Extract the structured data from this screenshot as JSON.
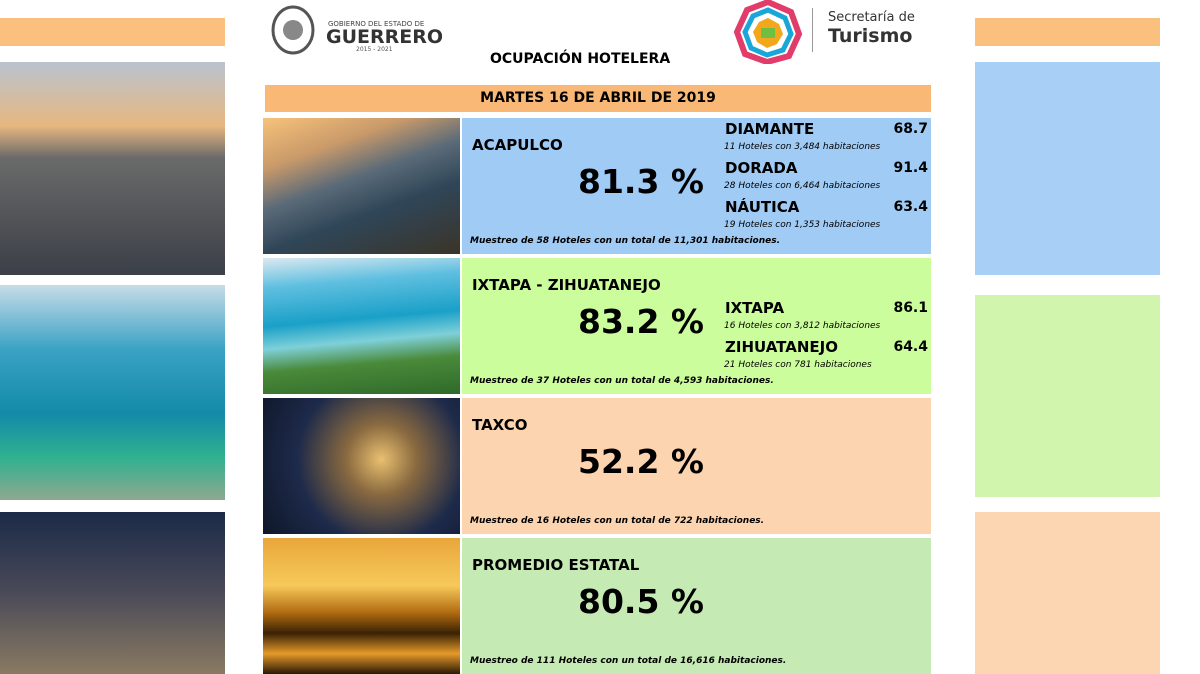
{
  "header": {
    "government": {
      "line1": "GOBIERNO DEL ESTADO DE",
      "name": "GUERRERO",
      "period": "2015 - 2021"
    },
    "secretaria": {
      "line1": "Secretaría de",
      "name": "Turismo"
    },
    "title": "OCUPACIÓN HOTELERA",
    "date": "MARTES 16 DE ABRIL DE 2019"
  },
  "regions": [
    {
      "name": "ACAPULCO",
      "occupancy": "81.3 %",
      "zones": [
        {
          "name": "DIAMANTE",
          "value": "68.7",
          "note": "11 Hoteles con 3,484 habitaciones"
        },
        {
          "name": "DORADA",
          "value": "91.4",
          "note": "28 Hoteles con 6,464 habitaciones"
        },
        {
          "name": "NÁUTICA",
          "value": "63.4",
          "note": "19 Hoteles con 1,353 habitaciones"
        }
      ],
      "sample": "Muestreo de 58 Hoteles con un total de 11,301 habitaciones."
    },
    {
      "name": "IXTAPA - ZIHUATANEJO",
      "occupancy": "83.2 %",
      "zones": [
        {
          "name": "IXTAPA",
          "value": "86.1",
          "note": "16 Hoteles con 3,812 habitaciones"
        },
        {
          "name": "ZIHUATANEJO",
          "value": "64.4",
          "note": "21 Hoteles con 781 habitaciones"
        }
      ],
      "sample": "Muestreo de 37 Hoteles con un total de 4,593 habitaciones."
    },
    {
      "name": "TAXCO",
      "occupancy": "52.2 %",
      "zones": [],
      "sample": "Muestreo de 16 Hoteles con un total de 722 habitaciones."
    },
    {
      "name": "PROMEDIO ESTATAL",
      "occupancy": "80.5 %",
      "zones": [],
      "sample": "Muestreo de 111 Hoteles con un total de 16,616 habitaciones."
    }
  ]
}
